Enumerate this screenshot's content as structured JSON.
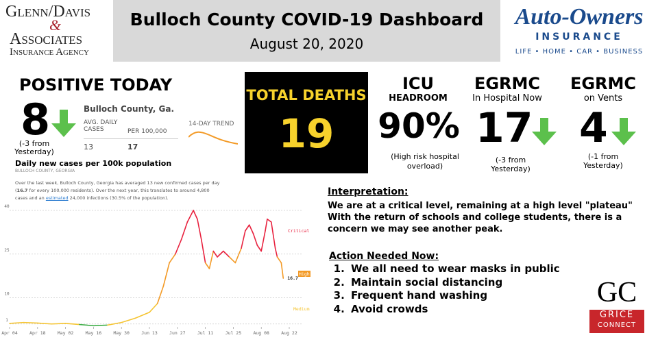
{
  "header": {
    "left_logo": {
      "line1": "Glenn/Davis",
      "amp": "&",
      "line2": "Associates",
      "line3": "Insurance Agency"
    },
    "title": "Bulloch County COVID-19 Dashboard",
    "date": "August 20, 2020",
    "right_logo": {
      "name": "Auto-Owners",
      "sub": "INSURANCE",
      "tagline": "LIFE • HOME • CAR • BUSINESS"
    }
  },
  "positive": {
    "heading": "POSITIVE TODAY",
    "value": 8,
    "change": "(-3 from Yesterday)"
  },
  "widget": {
    "county": "Bulloch County, Ga.",
    "col1": "AVG. DAILY CASES",
    "col2": "PER 100,000",
    "v1": 13,
    "v2": 17,
    "trend": "14-DAY TREND",
    "caption": "Daily new cases per 100k population",
    "source": "BULLOCH COUNTY, GEORGIA",
    "note_a": "Over the last week, Bulloch County, Georgia has averaged 13 new confirmed cases per day (",
    "note_b": "16.7",
    "note_c": " for every 100,000 residents). Over the next year, this translates to around 4,800 cases and an ",
    "note_link": "estimated",
    "note_d": " 24,000 infections (30.5% of the population)."
  },
  "deaths": {
    "label": "TOTAL DEATHS",
    "value": 19
  },
  "icu": {
    "title": "ICU",
    "subtitle": "HEADROOM",
    "value": 90,
    "value_label": "90%",
    "note": "(High risk hospital overload)"
  },
  "hospital": {
    "title": "EGRMC",
    "subtitle": "In Hospital Now",
    "value": 17,
    "change": "(-3 from Yesterday)"
  },
  "vents": {
    "title": "EGRMC",
    "subtitle": "on Vents",
    "value": 4,
    "change": "(-1 from Yesterday)"
  },
  "interpretation": {
    "heading": "Interpretation:",
    "text": "We are at a critical level, remaining at a high level \"plateau\" With the return of schools and college students, there is a concern we may see another peak."
  },
  "actions": {
    "heading": "Action Needed Now:",
    "items": [
      "We all need to wear masks in public",
      "Maintain social distancing",
      "Frequent hand washing",
      "Avoid crowds"
    ]
  },
  "footer_logo": {
    "mark": "GC",
    "line1": "GRICE",
    "line2": "CONNECT"
  },
  "chart_data": {
    "type": "line",
    "x": [
      0,
      7,
      14,
      21,
      28,
      35,
      42,
      49,
      56,
      63,
      70,
      74,
      77,
      80,
      83,
      86,
      89,
      92,
      94,
      96,
      98,
      100,
      102,
      104,
      107,
      110,
      113,
      116,
      118,
      120,
      122,
      124,
      126,
      128,
      129,
      131,
      133,
      134,
      136,
      137
    ],
    "values": [
      1.2,
      1.5,
      1.3,
      1.0,
      1.2,
      0.8,
      0.4,
      0.6,
      1.5,
      3,
      5,
      8,
      14,
      22,
      25,
      30,
      36,
      40,
      37,
      30,
      22,
      20,
      26,
      24,
      26,
      24,
      22,
      27,
      33,
      35,
      32,
      28,
      26,
      33,
      37,
      36,
      27,
      24,
      22,
      16.7
    ],
    "xlim": [
      0,
      140
    ],
    "xticks": [
      {
        "value": 0,
        "label": "Apr 04"
      },
      {
        "value": 14,
        "label": "Apr 18"
      },
      {
        "value": 28,
        "label": "May 02"
      },
      {
        "value": 42,
        "label": "May 16"
      },
      {
        "value": 56,
        "label": "May 30"
      },
      {
        "value": 70,
        "label": "Jun 13"
      },
      {
        "value": 84,
        "label": "Jun 27"
      },
      {
        "value": 98,
        "label": "Jul 11"
      },
      {
        "value": 112,
        "label": "Jul 25"
      },
      {
        "value": 126,
        "label": "Aug 08"
      },
      {
        "value": 140,
        "label": "Aug 22"
      }
    ],
    "ylim": [
      0,
      40
    ],
    "yticks": [
      1,
      10,
      25,
      40
    ],
    "grid": true,
    "levels": [
      {
        "name": "Critical",
        "min": 25,
        "color": "#e8213e"
      },
      {
        "name": "High",
        "min": 10,
        "color": "#f39a26"
      },
      {
        "name": "Medium",
        "min": 1,
        "color": "#f5c431"
      }
    ],
    "low_color": "#3fae49"
  }
}
